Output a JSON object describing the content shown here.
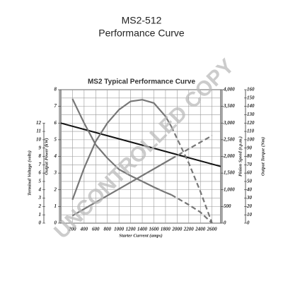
{
  "chart_data": {
    "type": "line",
    "title": "MS2-512",
    "subtitle": "Performance Curve",
    "chart_title": "MS2 Typical Performance Curve",
    "watermark": "UNCONTROLLED COPY",
    "xlabel": "Starter Current (amps)",
    "xlim": [
      0,
      2750
    ],
    "xticks": [
      200,
      400,
      600,
      800,
      1000,
      1200,
      1400,
      1600,
      1800,
      2000,
      2200,
      2400,
      2600
    ],
    "grid": true,
    "axes": [
      {
        "label": "Terminal Voltage (volts)",
        "lim": [
          0,
          16
        ],
        "ticks": [
          0,
          1,
          2,
          3,
          4,
          5,
          6,
          7,
          8,
          9,
          10,
          11,
          12
        ]
      },
      {
        "label": "Output Power (kW)",
        "lim": [
          0,
          8
        ],
        "ticks": [
          0,
          1,
          2,
          3,
          4,
          5,
          6,
          7,
          8
        ]
      },
      {
        "label": "Pinion Speed (r.p.m.)",
        "lim": [
          0,
          4000
        ],
        "ticks": [
          0,
          500,
          {
            "value": 1000,
            "label": "1,000"
          },
          {
            "value": 1500,
            "label": "1,500"
          },
          {
            "value": 2000,
            "label": "2,000"
          },
          {
            "value": 2500,
            "label": "2,500"
          },
          {
            "value": 3000,
            "label": "3,000"
          },
          {
            "value": 3500,
            "label": "3,500"
          },
          {
            "value": 4000,
            "label": "4,000"
          }
        ]
      },
      {
        "label": "Output Torque (Nm)",
        "lim": [
          0,
          160
        ],
        "ticks": [
          0,
          10,
          20,
          30,
          40,
          50,
          60,
          70,
          80,
          90,
          100,
          110,
          120,
          130,
          140,
          150,
          160
        ]
      }
    ],
    "series": [
      {
        "axis": 0,
        "color": "#111111",
        "linestyle": "solid",
        "x": [
          0,
          2750
        ],
        "values": [
          12,
          6.8
        ]
      },
      {
        "axis": 2,
        "color": "#777777",
        "linestyle": "solid",
        "x": [
          200,
          400,
          600,
          800,
          1000,
          1200,
          1400,
          1600,
          1800,
          1900
        ],
        "values": [
          3725,
          3000,
          2350,
          1950,
          1610,
          1420,
          1250,
          1080,
          920,
          850
        ]
      },
      {
        "axis": 2,
        "color": "#777777",
        "linestyle": "dashed",
        "x": [
          1900,
          2200,
          2400,
          2600
        ],
        "values": [
          850,
          550,
          330,
          0
        ]
      },
      {
        "axis": 1,
        "color": "#777777",
        "linestyle": "solid",
        "x": [
          200,
          400,
          600,
          800,
          1000,
          1200,
          1400,
          1600,
          1800,
          1900
        ],
        "values": [
          1.4,
          3.3,
          4.9,
          6.0,
          6.8,
          7.3,
          7.4,
          7.2,
          6.4,
          5.8
        ]
      },
      {
        "axis": 1,
        "color": "#777777",
        "linestyle": "dashed",
        "x": [
          1900,
          2200,
          2400,
          2600
        ],
        "values": [
          5.8,
          3.6,
          1.9,
          0
        ]
      },
      {
        "axis": 3,
        "color": "#777777",
        "linestyle": "solid",
        "x": [
          200,
          1000,
          1900
        ],
        "values": [
          9,
          41,
          77
        ]
      },
      {
        "axis": 3,
        "color": "#777777",
        "linestyle": "dashed",
        "x": [
          1900,
          2600
        ],
        "values": [
          77,
          105
        ]
      }
    ]
  }
}
